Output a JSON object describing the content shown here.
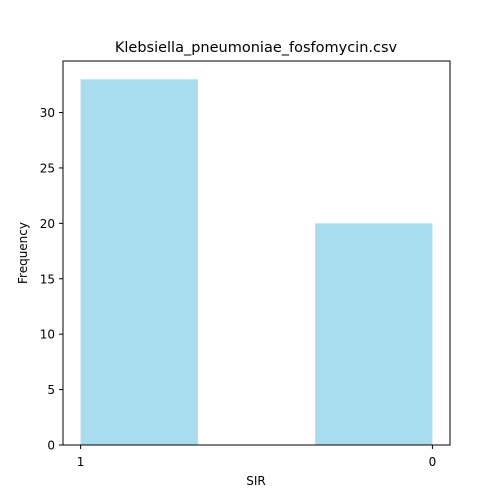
{
  "chart_data": {
    "type": "bar",
    "title": "Klebsiella_pneumoniae_fosfomycin.csv",
    "xlabel": "SIR",
    "ylabel": "Frequency",
    "bars": [
      {
        "x0": 1.0,
        "x1": 0.6667,
        "value": 33
      },
      {
        "x0": 0.3333,
        "x1": 0.0,
        "value": 20
      }
    ],
    "xlim": [
      1.05,
      -0.05
    ],
    "ylim": [
      0,
      34.65
    ],
    "x_ticks": [
      {
        "value": 1,
        "label": "1"
      },
      {
        "value": 0,
        "label": "0"
      }
    ],
    "y_ticks": [
      0,
      5,
      10,
      15,
      20,
      25,
      30
    ],
    "bar_color": "#a9dcee",
    "grid": false
  }
}
